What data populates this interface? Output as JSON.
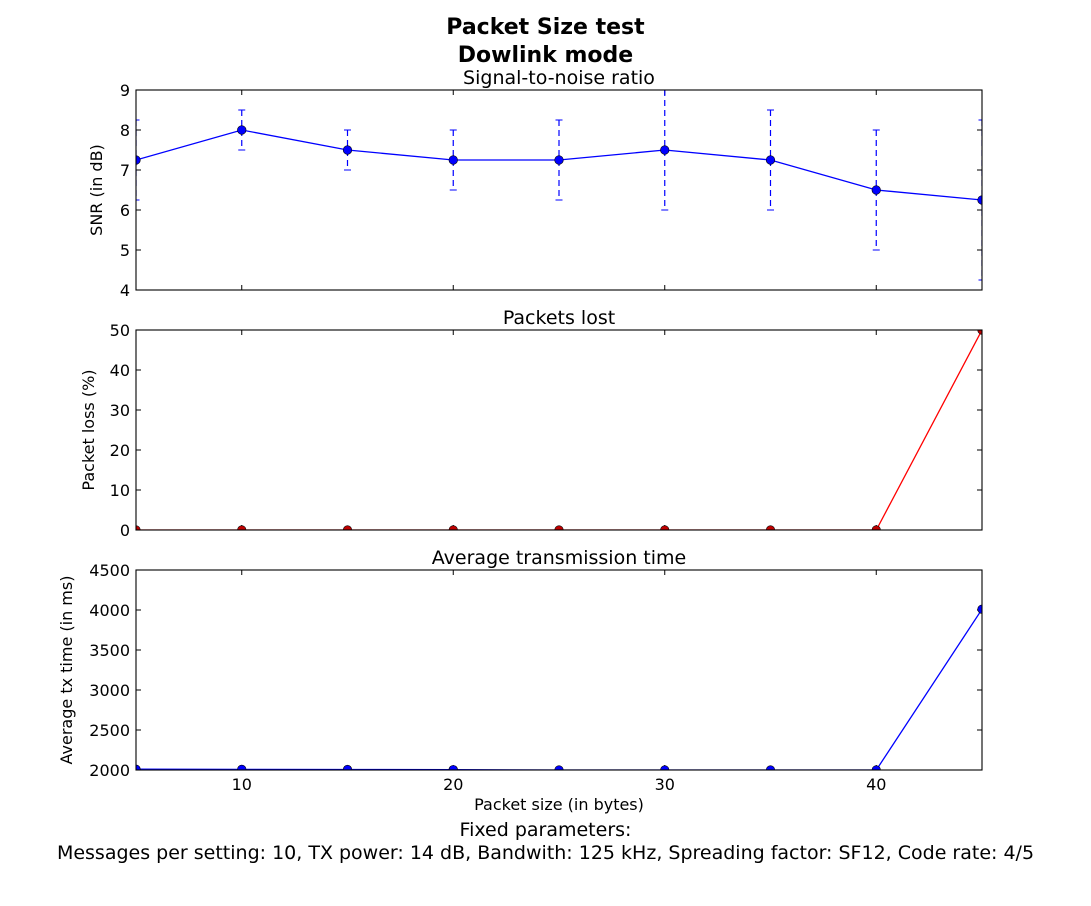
{
  "figure": {
    "title_line1": "Packet Size test",
    "title_line2": "Dowlink mode",
    "footer_line1": "Fixed parameters:",
    "footer_line2": "Messages per setting: 10, TX power: 14 dB, Bandwith: 125 kHz, Spreading factor: SF12, Code rate: 4/5"
  },
  "colors": {
    "snr": "#0000ff",
    "loss_line": "#ff0000",
    "loss_marker": "#bf0000",
    "tx": "#0000ff",
    "marker_blue": "#0000ff"
  },
  "chart_data": [
    {
      "type": "line",
      "title": "Signal-to-noise ratio",
      "xlabel": "",
      "ylabel": "SNR (in dB)",
      "x": [
        5,
        10,
        15,
        20,
        25,
        30,
        35,
        40,
        45
      ],
      "series": [
        {
          "values": [
            7.25,
            8.0,
            7.5,
            7.25,
            7.25,
            7.5,
            7.25,
            6.5,
            6.25
          ],
          "error": [
            1.0,
            0.5,
            0.5,
            0.75,
            1.0,
            1.5,
            1.25,
            1.5,
            2.0
          ]
        }
      ],
      "xlim": [
        5,
        45
      ],
      "ylim": [
        4,
        9
      ],
      "yticks": [
        4,
        5,
        6,
        7,
        8,
        9
      ],
      "xticks": [
        10,
        20,
        30,
        40
      ],
      "show_xticklabels": false,
      "grid": false
    },
    {
      "type": "line",
      "title": "Packets lost",
      "xlabel": "",
      "ylabel": "Packet loss (%)",
      "x": [
        5,
        10,
        15,
        20,
        25,
        30,
        35,
        40,
        45
      ],
      "series": [
        {
          "values": [
            0,
            0,
            0,
            0,
            0,
            0,
            0,
            0,
            50
          ]
        }
      ],
      "xlim": [
        5,
        45
      ],
      "ylim": [
        0,
        50
      ],
      "yticks": [
        0,
        10,
        20,
        30,
        40,
        50
      ],
      "xticks": [
        10,
        20,
        30,
        40
      ],
      "show_xticklabels": false,
      "grid": false
    },
    {
      "type": "line",
      "title": "Average transmission time",
      "xlabel": "Packet size (in bytes)",
      "ylabel": "Average tx time (in ms)",
      "x": [
        5,
        10,
        15,
        20,
        25,
        30,
        35,
        40,
        45
      ],
      "series": [
        {
          "values": [
            2010,
            2008,
            2006,
            2004,
            2000,
            2000,
            2000,
            2000,
            4010
          ]
        }
      ],
      "xlim": [
        5,
        45
      ],
      "ylim": [
        2000,
        4500
      ],
      "yticks": [
        2000,
        2500,
        3000,
        3500,
        4000,
        4500
      ],
      "xticks": [
        10,
        20,
        30,
        40
      ],
      "show_xticklabels": true,
      "grid": false
    }
  ]
}
